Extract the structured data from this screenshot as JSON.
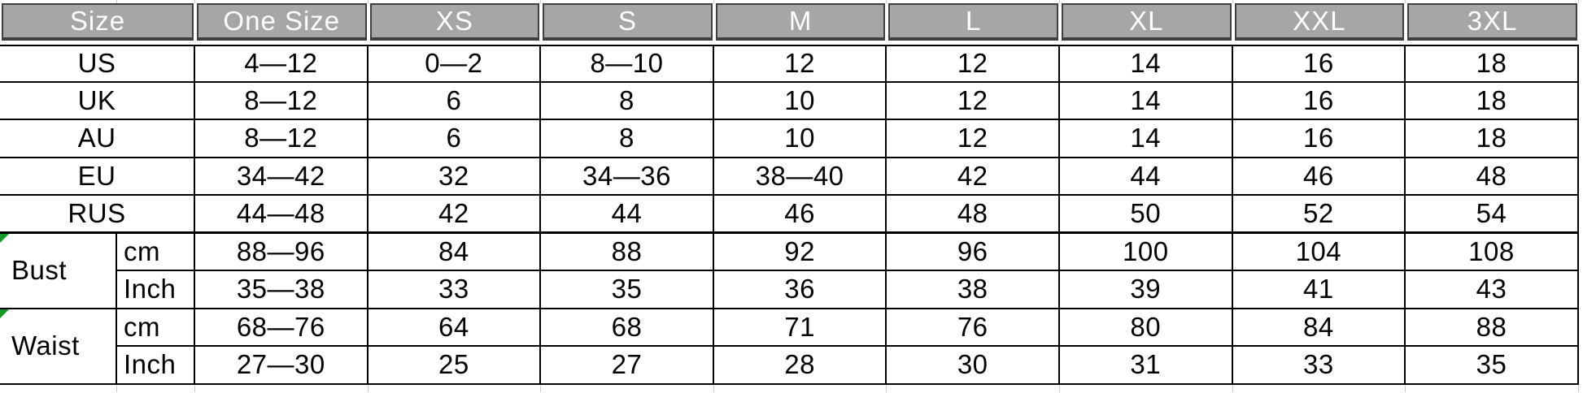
{
  "sheet": {
    "columns": [
      "Size",
      "One Size",
      "XS",
      "S",
      "M",
      "L",
      "XL",
      "XXL",
      "3XL"
    ],
    "region_rows": [
      {
        "label": "US",
        "values": [
          "4—12",
          "0—2",
          "8—10",
          "12",
          "12",
          "14",
          "16",
          "18"
        ]
      },
      {
        "label": "UK",
        "values": [
          "8—12",
          "6",
          "8",
          "10",
          "12",
          "14",
          "16",
          "18"
        ]
      },
      {
        "label": "AU",
        "values": [
          "8—12",
          "6",
          "8",
          "10",
          "12",
          "14",
          "16",
          "18"
        ]
      },
      {
        "label": "EU",
        "values": [
          "34—42",
          "32",
          "34—36",
          "38—40",
          "42",
          "44",
          "46",
          "48"
        ]
      },
      {
        "label": "RUS",
        "values": [
          "44—48",
          "42",
          "44",
          "46",
          "48",
          "50",
          "52",
          "54"
        ]
      }
    ],
    "measure_rows": [
      {
        "label": "Bust",
        "sub": [
          {
            "unit": "cm",
            "values": [
              "88—96",
              "84",
              "88",
              "92",
              "96",
              "100",
              "104",
              "108"
            ]
          },
          {
            "unit": "Inch",
            "values": [
              "35—38",
              "33",
              "35",
              "36",
              "38",
              "39",
              "41",
              "43"
            ]
          }
        ]
      },
      {
        "label": "Waist",
        "sub": [
          {
            "unit": "cm",
            "values": [
              "68—76",
              "64",
              "68",
              "71",
              "76",
              "80",
              "84",
              "88"
            ]
          },
          {
            "unit": "Inch",
            "values": [
              "27—30",
              "25",
              "27",
              "28",
              "30",
              "31",
              "33",
              "35"
            ]
          }
        ]
      }
    ],
    "colors": {
      "header_bg": "#a6a6a6",
      "header_border": "#3f3f3f",
      "header_text": "#ffffff",
      "grid_line": "#000000",
      "comment_marker": "#169a27"
    }
  }
}
